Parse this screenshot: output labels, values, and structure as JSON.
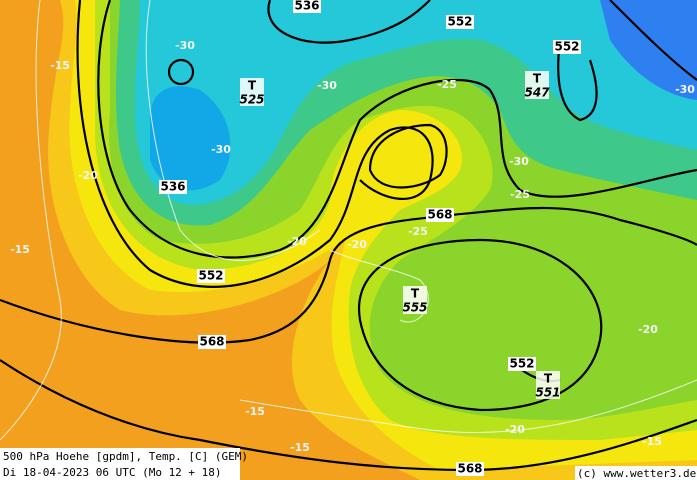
{
  "caption": {
    "line1": "500 hPa Hoehe [gpdm], Temp. [C] (GEM)",
    "line2": "Di 18-04-2023 06 UTC (Mo 12 + 18)"
  },
  "copyright": "(c) www.wetter3.de",
  "contour_labels": [
    "536",
    "552",
    "552",
    "536",
    "552",
    "568",
    "568",
    "552",
    "568"
  ],
  "temperature_labels": [
    "-30",
    "-15",
    "-30",
    "-30",
    "-20",
    "-25",
    "-30",
    "-25",
    "-20",
    "-20",
    "-25",
    "-15",
    "-20",
    "-15",
    "-15",
    "-20",
    "-15",
    "-30"
  ],
  "lows": [
    {
      "symbol": "T",
      "value": "525"
    },
    {
      "symbol": "T",
      "value": "547"
    },
    {
      "symbol": "T",
      "value": "555"
    },
    {
      "symbol": "T",
      "value": "551"
    }
  ]
}
